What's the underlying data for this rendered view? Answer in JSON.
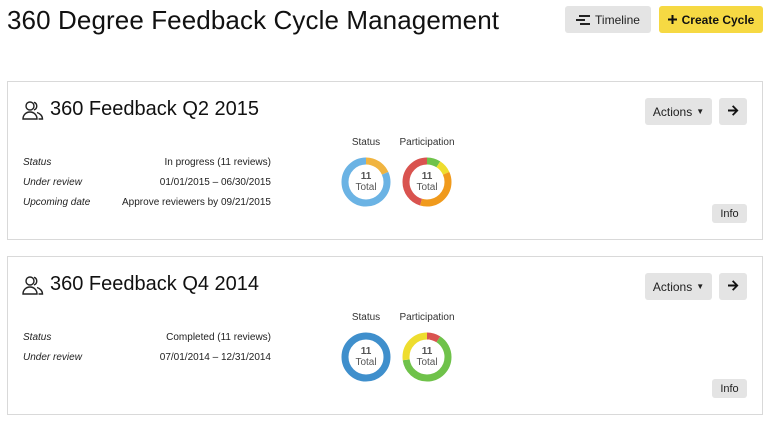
{
  "page": {
    "title": "360 Degree Feedback Cycle Management"
  },
  "toolbar": {
    "timeline_label": "Timeline",
    "create_label": "Create Cycle"
  },
  "cycles": [
    {
      "title": "360 Feedback Q2 2015",
      "actions_label": "Actions",
      "info_label": "Info",
      "fields": [
        {
          "label": "Status",
          "value": "In progress (11 reviews)"
        },
        {
          "label": "Under review",
          "value": "01/01/2015 – 06/30/2015"
        },
        {
          "label": "Upcoming date",
          "value": "Approve reviewers by 09/21/2015"
        }
      ],
      "status_chart": {
        "label": "Status",
        "total": "11",
        "total_label": "Total",
        "segments": [
          {
            "value": 2,
            "color": "#f0b440"
          },
          {
            "value": 9,
            "color": "#6bb3e4"
          }
        ]
      },
      "participation_chart": {
        "label": "Participation",
        "total": "11",
        "total_label": "Total",
        "segments": [
          {
            "value": 1,
            "color": "#6fc24a"
          },
          {
            "value": 1,
            "color": "#eedd2e"
          },
          {
            "value": 4,
            "color": "#f09a1c"
          },
          {
            "value": 5,
            "color": "#d9534f"
          }
        ]
      }
    },
    {
      "title": "360 Feedback Q4 2014",
      "actions_label": "Actions",
      "info_label": "Info",
      "fields": [
        {
          "label": "Status",
          "value": "Completed (11 reviews)"
        },
        {
          "label": "Under review",
          "value": "07/01/2014 – 12/31/2014"
        }
      ],
      "status_chart": {
        "label": "Status",
        "total": "11",
        "total_label": "Total",
        "segments": [
          {
            "value": 11,
            "color": "#3f8fcc"
          }
        ]
      },
      "participation_chart": {
        "label": "Participation",
        "total": "11",
        "total_label": "Total",
        "segments": [
          {
            "value": 1,
            "color": "#d9534f"
          },
          {
            "value": 7,
            "color": "#6fc24a"
          },
          {
            "value": 3,
            "color": "#eedd2e"
          }
        ]
      }
    }
  ]
}
